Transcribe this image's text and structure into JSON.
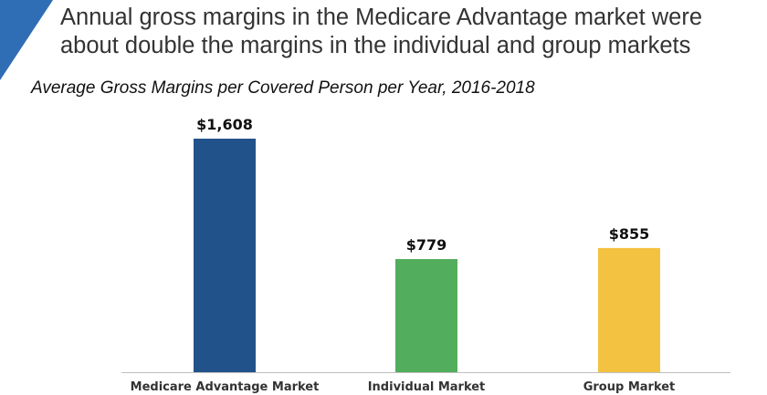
{
  "slide": {
    "headline_line1": "Annual gross margins in the Medicare Advantage  market were",
    "headline_line2": "about double the margins in the individual and group markets",
    "accent_color": "#2F6DB5"
  },
  "chart_data": {
    "type": "bar",
    "title": "Average Gross Margins per Covered Person per Year, 2016-2018",
    "xlabel": "",
    "ylabel": "",
    "categories": [
      "Medicare Advantage Market",
      "Individual Market",
      "Group Market"
    ],
    "values": [
      1608,
      779,
      855
    ],
    "value_labels": [
      "$1,608",
      "$779",
      "$855"
    ],
    "colors": [
      "#22528A",
      "#52AD5C",
      "#F4C241"
    ],
    "ylim": [
      0,
      1608
    ],
    "grid": false,
    "legend": "none"
  }
}
